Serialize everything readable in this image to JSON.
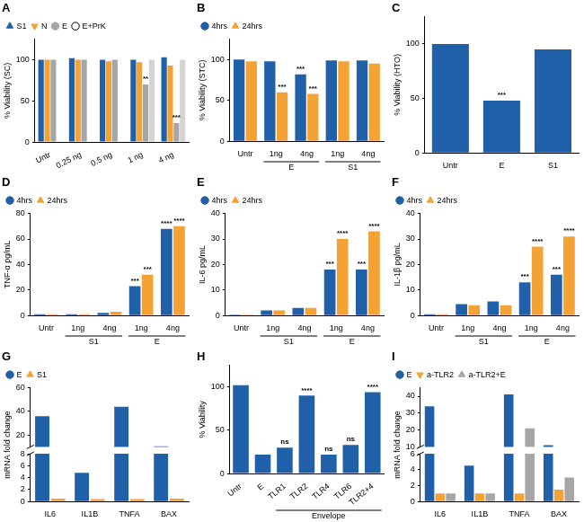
{
  "chart_data": [
    {
      "type": "bar",
      "title": "A",
      "ylabel": "% Viability (SC)",
      "categories": [
        "Untr",
        "0.25 ng",
        "0.5 ng",
        "1 ng",
        "4 ng"
      ],
      "series": [
        {
          "name": "S1",
          "color": "#2060a8",
          "marker": "triangle",
          "values": [
            100,
            102,
            100,
            100,
            103
          ]
        },
        {
          "name": "N",
          "color": "#f4a233",
          "marker": "triangle-down",
          "values": [
            100,
            100,
            98,
            97,
            93
          ]
        },
        {
          "name": "E",
          "color": "#a6a6a6",
          "marker": "circle",
          "values": [
            100,
            100,
            100,
            70,
            23
          ]
        },
        {
          "name": "E+PrK",
          "color": "#d4d4d4",
          "marker": "circle-open",
          "values": [
            null,
            null,
            null,
            100,
            100
          ]
        }
      ],
      "ylim": [
        0,
        125
      ],
      "yticks": [
        0,
        50,
        100
      ],
      "grid": false,
      "legend": "top",
      "annotations": [
        {
          "index": 3,
          "series": "E",
          "text": "**"
        },
        {
          "index": 4,
          "series": "E",
          "text": "***"
        }
      ]
    },
    {
      "type": "bar",
      "title": "B",
      "ylabel": "% Viability (STC)",
      "categories": [
        "Untr",
        "1ng",
        "4ng",
        "1ng",
        "4ng"
      ],
      "x_groups": [
        {
          "label": "E",
          "first": 1,
          "last": 2
        },
        {
          "label": "S1",
          "first": 3,
          "last": 4
        }
      ],
      "series": [
        {
          "name": "4hrs",
          "color": "#2060a8",
          "marker": "circle",
          "values": [
            100,
            98,
            82,
            99,
            99
          ]
        },
        {
          "name": "24hrs",
          "color": "#f4a233",
          "marker": "triangle",
          "values": [
            98,
            60,
            58,
            98,
            95
          ]
        }
      ],
      "ylim": [
        0,
        125
      ],
      "yticks": [
        0,
        50,
        100
      ],
      "grid": false,
      "legend": "top",
      "annotations": [
        {
          "index": 1,
          "series": "24hrs",
          "text": "***"
        },
        {
          "index": 2,
          "series": "4hrs",
          "text": "***"
        },
        {
          "index": 2,
          "series": "24hrs",
          "text": "***"
        }
      ]
    },
    {
      "type": "bar",
      "title": "C",
      "ylabel": "% Viability (HTO)",
      "categories": [
        "Untr",
        "E",
        "S1"
      ],
      "values": [
        100,
        48,
        95
      ],
      "color": "#2060a8",
      "ylim": [
        0,
        125
      ],
      "yticks": [
        0,
        50,
        100
      ],
      "grid": false,
      "annotations": [
        {
          "index": 1,
          "text": "***"
        }
      ]
    },
    {
      "type": "bar",
      "title": "D",
      "ylabel": "TNF-α pg/mL",
      "categories": [
        "Untr",
        "1ng",
        "4ng",
        "1ng",
        "4ng"
      ],
      "x_groups": [
        {
          "label": "S1",
          "first": 1,
          "last": 2
        },
        {
          "label": "E",
          "first": 3,
          "last": 4
        }
      ],
      "series": [
        {
          "name": "4hrs",
          "color": "#2060a8",
          "marker": "circle",
          "values": [
            1,
            1,
            2,
            23,
            68
          ]
        },
        {
          "name": "24hrs",
          "color": "#f4a233",
          "marker": "triangle",
          "values": [
            1,
            1,
            3,
            32,
            70
          ]
        }
      ],
      "ylim": [
        0,
        80
      ],
      "yticks": [
        0,
        20,
        40,
        60,
        80
      ],
      "grid": false,
      "legend": "top",
      "annotations": [
        {
          "index": 3,
          "series": "4hrs",
          "text": "***"
        },
        {
          "index": 3,
          "series": "24hrs",
          "text": "***"
        },
        {
          "index": 4,
          "series": "4hrs",
          "text": "****"
        },
        {
          "index": 4,
          "series": "24hrs",
          "text": "****"
        }
      ]
    },
    {
      "type": "bar",
      "title": "E",
      "ylabel": "IL-6 pg/mL",
      "categories": [
        "Untr",
        "1ng",
        "4ng",
        "1ng",
        "4ng"
      ],
      "x_groups": [
        {
          "label": "S1",
          "first": 1,
          "last": 2
        },
        {
          "label": "E",
          "first": 3,
          "last": 4
        }
      ],
      "series": [
        {
          "name": "4hrs",
          "color": "#2060a8",
          "marker": "circle",
          "values": [
            0.3,
            2,
            3,
            18,
            18
          ]
        },
        {
          "name": "24hrs",
          "color": "#f4a233",
          "marker": "triangle",
          "values": [
            0.3,
            2,
            3,
            30,
            33
          ]
        }
      ],
      "ylim": [
        0,
        40
      ],
      "yticks": [
        0,
        10,
        20,
        30,
        40
      ],
      "grid": false,
      "legend": "top",
      "annotations": [
        {
          "index": 3,
          "series": "4hrs",
          "text": "***"
        },
        {
          "index": 3,
          "series": "24hrs",
          "text": "****"
        },
        {
          "index": 4,
          "series": "4hrs",
          "text": "***"
        },
        {
          "index": 4,
          "series": "24hrs",
          "text": "****"
        }
      ]
    },
    {
      "type": "bar",
      "title": "F",
      "ylabel": "IL-1β pg/mL",
      "categories": [
        "Untr",
        "1ng",
        "4ng",
        "1ng",
        "4ng"
      ],
      "x_groups": [
        {
          "label": "S1",
          "first": 1,
          "last": 2
        },
        {
          "label": "E",
          "first": 3,
          "last": 4
        }
      ],
      "series": [
        {
          "name": "4hrs",
          "color": "#2060a8",
          "marker": "circle",
          "values": [
            0.5,
            4.5,
            5.5,
            13,
            16
          ]
        },
        {
          "name": "24hrs",
          "color": "#f4a233",
          "marker": "triangle",
          "values": [
            0.5,
            4,
            4,
            27,
            31
          ]
        }
      ],
      "ylim": [
        0,
        40
      ],
      "yticks": [
        0,
        10,
        20,
        30,
        40
      ],
      "grid": false,
      "legend": "top",
      "annotations": [
        {
          "index": 3,
          "series": "4hrs",
          "text": "***"
        },
        {
          "index": 3,
          "series": "24hrs",
          "text": "****"
        },
        {
          "index": 4,
          "series": "4hrs",
          "text": "***"
        },
        {
          "index": 4,
          "series": "24hrs",
          "text": "****"
        }
      ]
    },
    {
      "type": "bar",
      "title": "G",
      "ylabel": "mRNA fold change",
      "categories": [
        "IL6",
        "IL1B",
        "TNFA",
        "BAX"
      ],
      "series": [
        {
          "name": "E",
          "color": "#2060a8",
          "marker": "circle",
          "values": [
            36,
            4.8,
            44,
            10.5
          ]
        },
        {
          "name": "S1",
          "color": "#f4a233",
          "marker": "triangle",
          "values": [
            0.5,
            0.4,
            0.4,
            0.5
          ]
        }
      ],
      "ylim": [
        0,
        60
      ],
      "yticks": [
        0,
        2,
        4,
        6,
        8,
        20,
        40,
        60
      ],
      "ybreak": [
        8,
        10
      ],
      "grid": false,
      "legend": "top"
    },
    {
      "type": "bar",
      "title": "H",
      "ylabel": "% Viability",
      "categories": [
        "Untr",
        "E",
        "TLR1",
        "TLR2",
        "TLR4",
        "TLR6",
        "TLR2+4"
      ],
      "x_groups": [
        {
          "label": "Envelope",
          "first": 2,
          "last": 6
        }
      ],
      "values": [
        102,
        22,
        30,
        90,
        22,
        33,
        94
      ],
      "color": "#2060a8",
      "ylim": [
        0,
        125
      ],
      "yticks": [
        0,
        50,
        100
      ],
      "grid": false,
      "annotations": [
        {
          "index": 2,
          "text": "ns"
        },
        {
          "index": 3,
          "text": "****"
        },
        {
          "index": 4,
          "text": "ns"
        },
        {
          "index": 5,
          "text": "ns"
        },
        {
          "index": 6,
          "text": "****"
        }
      ]
    },
    {
      "type": "bar",
      "title": "I",
      "ylabel": "mRNA fold change",
      "categories": [
        "IL6",
        "IL1B",
        "TNFA",
        "BAX"
      ],
      "series": [
        {
          "name": "E",
          "color": "#2060a8",
          "marker": "circle",
          "values": [
            34,
            4.5,
            41,
            11
          ]
        },
        {
          "name": "a-TLR2",
          "color": "#f4a233",
          "marker": "triangle-down",
          "values": [
            1,
            1,
            1,
            1.5
          ]
        },
        {
          "name": "a-TLR2+E",
          "color": "#a6a6a6",
          "marker": "triangle",
          "values": [
            1,
            1,
            21,
            3
          ]
        }
      ],
      "ylim": [
        0,
        45
      ],
      "yticks": [
        0,
        2,
        4,
        6,
        10,
        20,
        30,
        40
      ],
      "ybreak": [
        6,
        10
      ],
      "grid": false,
      "legend": "top"
    }
  ]
}
